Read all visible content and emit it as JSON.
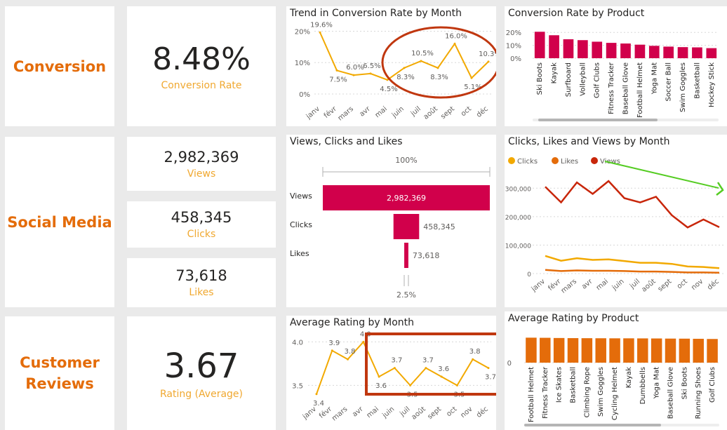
{
  "sections": {
    "conversion": "Conversion",
    "social_media": "Social Media",
    "customer_reviews_line1": "Customer",
    "customer_reviews_line2": "Reviews"
  },
  "kpis": {
    "conversion_rate": {
      "value": "8.48%",
      "label": "Conversion Rate"
    },
    "views": {
      "value": "2,982,369",
      "label": "Views"
    },
    "clicks": {
      "value": "458,345",
      "label": "Clicks"
    },
    "likes": {
      "value": "73,618",
      "label": "Likes"
    },
    "rating": {
      "value": "3.67",
      "label": "Rating (Average)"
    }
  },
  "colors": {
    "accent": "#e46c0a",
    "line": "#f2a900",
    "bar": "#d1004b",
    "rating_bar": "#e46c0a",
    "highlight": "#c0370f",
    "arrow": "#55cc22"
  },
  "chart_data": [
    {
      "id": "trend_conversion",
      "type": "line",
      "title": "Trend in Conversion Rate by Month",
      "categories": [
        "janv",
        "févr",
        "mars",
        "avr",
        "mai",
        "juin",
        "juil",
        "août",
        "sept",
        "oct",
        "déc"
      ],
      "values": [
        19.6,
        7.5,
        6.0,
        6.5,
        4.5,
        8.3,
        10.5,
        8.3,
        16.0,
        5.1,
        10.3
      ],
      "data_labels": [
        "19.6%",
        "7.5%",
        "6.0%",
        "6.5%",
        "4.5%",
        "8.3%",
        "10.5%",
        "8.3%",
        "16.0%",
        "5.1%",
        "10.3%"
      ],
      "y_ticks": [
        "0%",
        "10%",
        "20%"
      ],
      "ylim": [
        0,
        21
      ]
    },
    {
      "id": "conversion_by_product",
      "type": "bar",
      "title": "Conversion Rate by Product",
      "categories": [
        "Ski Boots",
        "Kayak",
        "Surfboard",
        "Volleyball",
        "Golf Clubs",
        "Fitness Tracker",
        "Baseball Glove",
        "Football Helmet",
        "Yoga Mat",
        "Soccer Ball",
        "Swim Goggles",
        "Basketball",
        "Hockey Stick"
      ],
      "values": [
        20.5,
        17.8,
        14.7,
        14.0,
        12.8,
        11.9,
        11.4,
        10.5,
        9.6,
        9.0,
        8.6,
        8.4,
        7.8
      ],
      "y_ticks": [
        "0%",
        "10%",
        "20%"
      ],
      "ylim": [
        0,
        25
      ]
    },
    {
      "id": "funnel",
      "type": "bar",
      "title": "Views, Clicks and Likes",
      "categories": [
        "Views",
        "Clicks",
        "Likes"
      ],
      "values": [
        2982369,
        458345,
        73618
      ],
      "value_labels": [
        "2,982,369",
        "458,345",
        "73,618"
      ],
      "top_label": "100%",
      "bottom_label": "2.5%"
    },
    {
      "id": "clicks_likes_views",
      "type": "line",
      "title": "Clicks, Likes and Views by Month",
      "categories": [
        "janv",
        "févr",
        "mars",
        "avr",
        "mai",
        "juin",
        "juil",
        "août",
        "sept",
        "oct",
        "nov",
        "déc"
      ],
      "series": [
        {
          "name": "Clicks",
          "color": "#f2a900",
          "values": [
            62000,
            45000,
            54000,
            48000,
            50000,
            44000,
            38000,
            38000,
            34000,
            25000,
            23000,
            19000
          ]
        },
        {
          "name": "Likes",
          "color": "#e46c0a",
          "values": [
            13000,
            9000,
            11000,
            10000,
            10000,
            9000,
            7000,
            7000,
            6000,
            4000,
            4000,
            3000
          ]
        },
        {
          "name": "Views",
          "color": "#c8260a",
          "values": [
            305000,
            250000,
            320000,
            280000,
            325000,
            265000,
            250000,
            270000,
            205000,
            162000,
            190000,
            163000
          ]
        }
      ],
      "y_ticks": [
        "0",
        "100,000",
        "200,000",
        "300,000"
      ],
      "ylim": [
        0,
        345000
      ]
    },
    {
      "id": "rating_by_month",
      "type": "line",
      "title": "Average Rating by Month",
      "categories": [
        "janv",
        "févr",
        "mars",
        "avr",
        "mai",
        "juin",
        "juil",
        "août",
        "sept",
        "oct",
        "nov",
        "déc"
      ],
      "values": [
        3.4,
        3.9,
        3.8,
        4.0,
        3.6,
        3.7,
        3.5,
        3.7,
        3.6,
        3.5,
        3.8,
        3.7
      ],
      "data_labels": [
        "3.4",
        "3.9",
        "3.8",
        "4.0",
        "3.6",
        "3.7",
        "3.5",
        "3.7",
        "3.6",
        "3.5",
        "3.8",
        "3.7"
      ],
      "y_ticks": [
        "3.5",
        "4.0"
      ],
      "ylim": [
        3.35,
        4.1
      ]
    },
    {
      "id": "rating_by_product",
      "type": "bar",
      "title": "Average Rating by Product",
      "categories": [
        "Football Helmet",
        "Fitness Tracker",
        "Ice Skates",
        "Basketball",
        "Climbing Rope",
        "Swim Goggles",
        "Cycling Helmet",
        "Kayak",
        "Dumbbells",
        "Yoga Mat",
        "Baseball Glove",
        "Ski Boots",
        "Running Shoes",
        "Golf Clubs"
      ],
      "values": [
        3.8,
        3.78,
        3.75,
        3.73,
        3.72,
        3.71,
        3.7,
        3.7,
        3.69,
        3.68,
        3.66,
        3.65,
        3.63,
        3.6
      ],
      "y_ticks": [
        "0"
      ],
      "ylim": [
        0,
        4.8
      ]
    }
  ]
}
